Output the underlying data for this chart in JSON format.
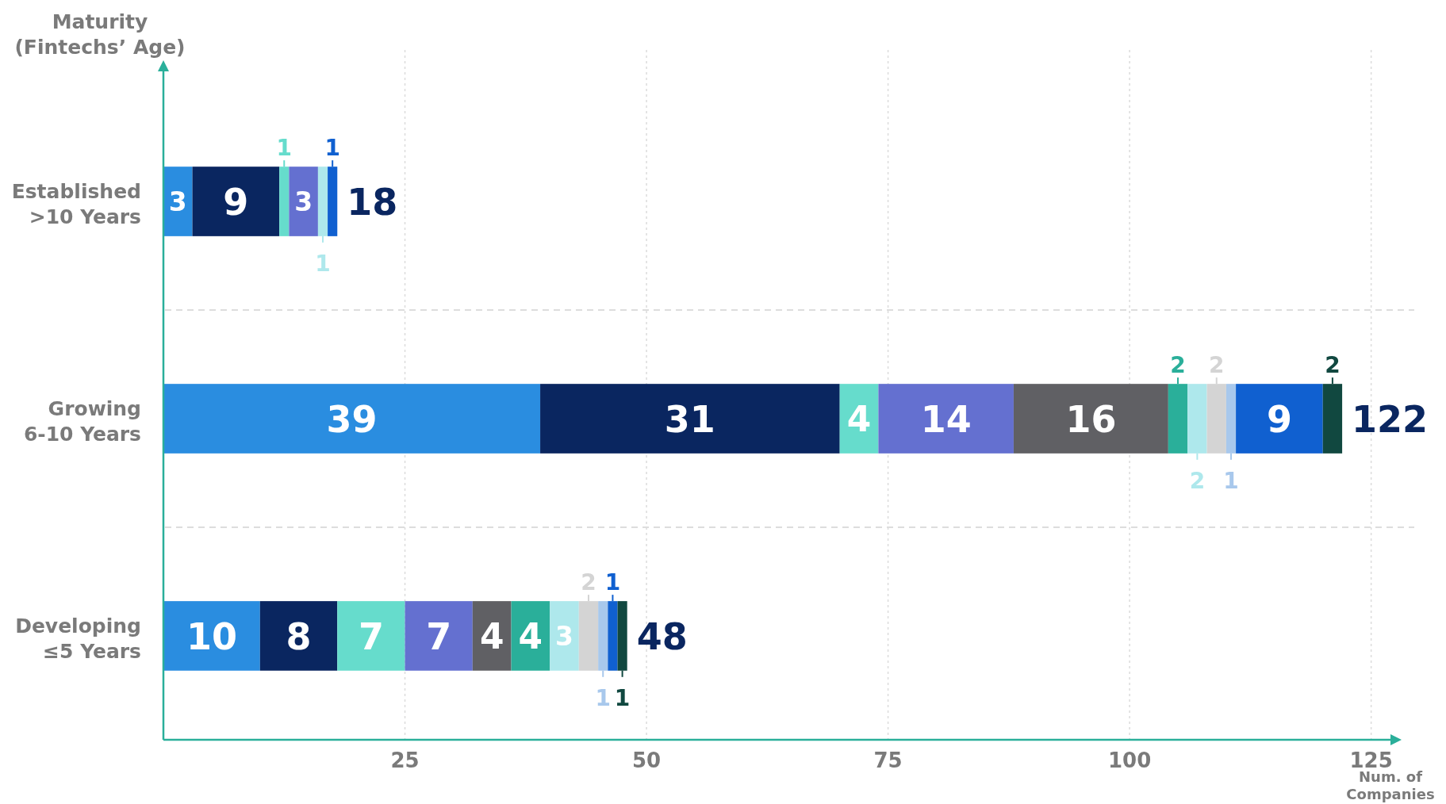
{
  "chart_data": {
    "type": "bar",
    "orientation": "horizontal",
    "stacked": true,
    "data_labels": true,
    "grid": "x",
    "ylabel": "Maturity\n(Fintechs’ Age)",
    "xlabel": "Num. of\nCompanies",
    "categories": [
      "Established\n>10 Years",
      "Growing\n6-10 Years",
      "Developing\n≤5 Years"
    ],
    "xlim": [
      0,
      127
    ],
    "xticks": [
      25,
      50,
      75,
      100,
      125
    ],
    "totals": [
      "18",
      "122",
      "48"
    ],
    "series": [
      {
        "color": "#2a8de0",
        "values": [
          3,
          39,
          10
        ]
      },
      {
        "color": "#0a2660",
        "values": [
          9,
          31,
          8
        ]
      },
      {
        "color": "#66dccc",
        "values": [
          1,
          4,
          7
        ]
      },
      {
        "color": "#6470d0",
        "values": [
          3,
          14,
          7
        ]
      },
      {
        "color": "#606064",
        "values": [
          null,
          16,
          4
        ]
      },
      {
        "color": "#2aaf9a",
        "values": [
          null,
          2,
          4
        ]
      },
      {
        "color": "#aee8ec",
        "values": [
          1,
          2,
          3
        ]
      },
      {
        "color": "#d4d4d4",
        "values": [
          null,
          2,
          2
        ]
      },
      {
        "color": "#a8c8ec",
        "values": [
          null,
          1,
          1
        ]
      },
      {
        "color": "#1060d0",
        "values": [
          1,
          9,
          1
        ]
      },
      {
        "color": "#114840",
        "values": [
          null,
          2,
          1
        ]
      }
    ]
  }
}
